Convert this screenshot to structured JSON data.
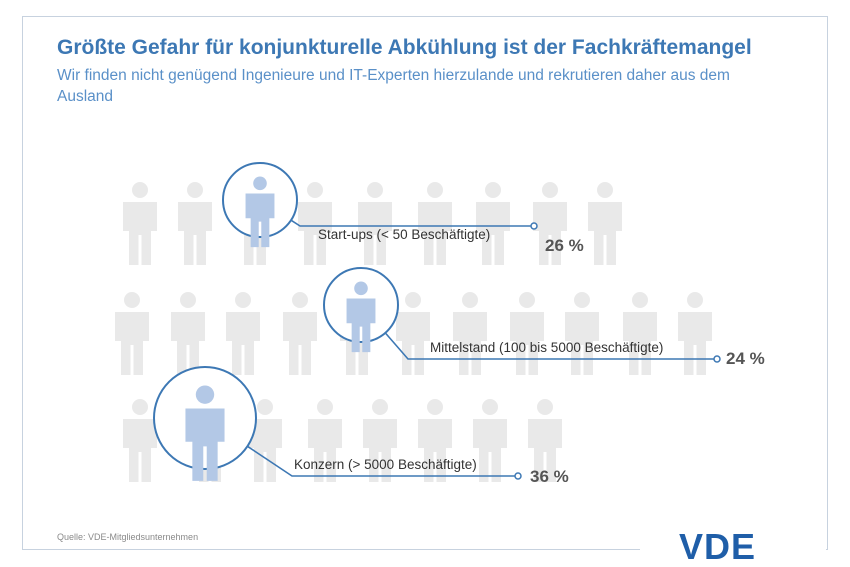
{
  "header": {
    "title": "Größte Gefahr für konjunkturelle Abkühlung ist der Fachkräftemangel",
    "subtitle": "Wir finden nicht genügend Ingenieure und IT-Experten hierzulande und rekrutieren daher aus dem Ausland"
  },
  "footer": {
    "source": "Quelle: VDE-Mitgliedsunternehmen",
    "logo": "VDE"
  },
  "colors": {
    "accent": "#3d78b4",
    "person_highlight": "#b3c8e6",
    "person_background": "#e9e9e9",
    "label_text": "#333333",
    "value_text": "#555555"
  },
  "icons": {
    "person": "person-icon"
  },
  "chart_data": {
    "type": "bar",
    "categories": [
      "Start-ups (< 50 Beschäftigte)",
      "Mittelstand (100 bis 5000 Beschäftigte)",
      "Konzern (> 5000 Beschäftigte)"
    ],
    "values": [
      26,
      24,
      36
    ],
    "value_labels": [
      "26 %",
      "24 %",
      "36 %"
    ],
    "unit": "%"
  }
}
